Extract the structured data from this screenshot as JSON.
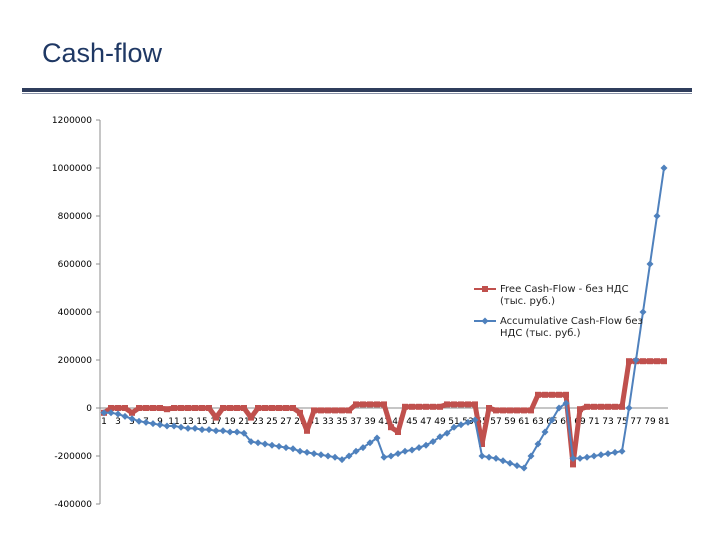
{
  "slide": {
    "title": "Cash-flow"
  },
  "colors": {
    "title": "#1f3864",
    "series_free": "#c0504d",
    "series_accum": "#4f81bd",
    "rule": "#2f3d5c"
  },
  "chart_data": {
    "type": "line",
    "title": "",
    "xlabel": "",
    "ylabel": "",
    "ylim": [
      -400000,
      1200000
    ],
    "yticks": [
      1200000,
      1000000,
      800000,
      600000,
      400000,
      200000,
      0,
      -200000,
      -400000
    ],
    "x": [
      1,
      2,
      3,
      4,
      5,
      6,
      7,
      8,
      9,
      10,
      11,
      12,
      13,
      14,
      15,
      16,
      17,
      18,
      19,
      20,
      21,
      22,
      23,
      24,
      25,
      26,
      27,
      28,
      29,
      30,
      31,
      32,
      33,
      34,
      35,
      36,
      37,
      38,
      39,
      40,
      41,
      42,
      43,
      44,
      45,
      46,
      47,
      48,
      49,
      50,
      51,
      52,
      53,
      54,
      55,
      56,
      57,
      58,
      59,
      60,
      61,
      62,
      63,
      64,
      65,
      66,
      67,
      68,
      69,
      70,
      71,
      72,
      73,
      74,
      75,
      76,
      77,
      78,
      79,
      80,
      81
    ],
    "xtick_labels": [
      "1",
      "3",
      "5",
      "7",
      "9",
      "11",
      "13",
      "15",
      "17",
      "19",
      "21",
      "23",
      "25",
      "27",
      "29",
      "31",
      "33",
      "35",
      "37",
      "39",
      "41",
      "43",
      "45",
      "47",
      "49",
      "51",
      "53",
      "55",
      "57",
      "59",
      "61",
      "63",
      "65",
      "67",
      "69",
      "71",
      "73",
      "75",
      "77",
      "79",
      "81"
    ],
    "grid": false,
    "legend_position": "right",
    "series": [
      {
        "name": "Free Cash-Flow - без НДС (тыс. руб.)",
        "color": "#c0504d",
        "marker": "square",
        "values": [
          -20000,
          0,
          0,
          0,
          -20000,
          0,
          0,
          0,
          0,
          -5000,
          0,
          0,
          0,
          0,
          0,
          0,
          -40000,
          0,
          0,
          0,
          0,
          -40000,
          0,
          0,
          0,
          0,
          0,
          0,
          -20000,
          -95000,
          -10000,
          -10000,
          -10000,
          -10000,
          -10000,
          -10000,
          15000,
          15000,
          15000,
          15000,
          15000,
          -80000,
          -100000,
          5000,
          5000,
          5000,
          5000,
          5000,
          5000,
          15000,
          15000,
          15000,
          15000,
          15000,
          -150000,
          0,
          -10000,
          -10000,
          -10000,
          -10000,
          -10000,
          -10000,
          55000,
          55000,
          55000,
          55000,
          55000,
          -235000,
          -5000,
          5000,
          5000,
          5000,
          5000,
          5000,
          5000,
          195000,
          195000,
          195000,
          195000,
          195000,
          195000
        ]
      },
      {
        "name": "Accumulative Cash-Flow без НДС (тыс. руб.)",
        "color": "#4f81bd",
        "marker": "diamond",
        "values": [
          -20000,
          -20000,
          -25000,
          -35000,
          -45000,
          -55000,
          -60000,
          -65000,
          -70000,
          -75000,
          -75000,
          -80000,
          -85000,
          -85000,
          -90000,
          -90000,
          -95000,
          -95000,
          -100000,
          -100000,
          -105000,
          -140000,
          -145000,
          -150000,
          -155000,
          -160000,
          -165000,
          -170000,
          -180000,
          -185000,
          -190000,
          -195000,
          -200000,
          -205000,
          -215000,
          -200000,
          -180000,
          -165000,
          -145000,
          -125000,
          -205000,
          -200000,
          -190000,
          -180000,
          -175000,
          -165000,
          -155000,
          -140000,
          -120000,
          -105000,
          -80000,
          -70000,
          -60000,
          -50000,
          -200000,
          -205000,
          -210000,
          -220000,
          -230000,
          -240000,
          -250000,
          -200000,
          -150000,
          -100000,
          -50000,
          0,
          20000,
          -210000,
          -210000,
          -205000,
          -200000,
          -195000,
          -190000,
          -185000,
          -180000,
          0,
          200000,
          400000,
          600000,
          800000,
          1000000
        ]
      }
    ]
  }
}
